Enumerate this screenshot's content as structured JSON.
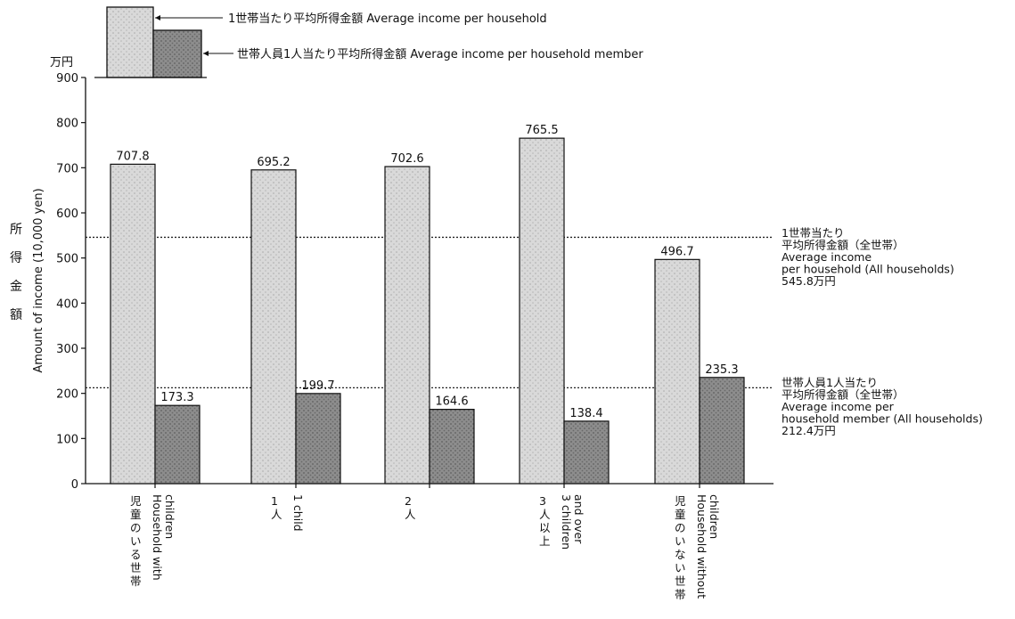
{
  "chart_data": {
    "type": "bar",
    "categories": [
      {
        "ja": "児童のいる世帯",
        "en": [
          "Household with",
          "children"
        ]
      },
      {
        "ja": "1人",
        "en": [
          "1 child"
        ]
      },
      {
        "ja": "2人",
        "en": []
      },
      {
        "ja": "3人以上",
        "en": [
          "3 children",
          "and over"
        ]
      },
      {
        "ja": "児童のいない世帯",
        "en": [
          "Household without",
          "children"
        ]
      }
    ],
    "series": [
      {
        "name": "1世帯当たり平均所得金額 Average income per household",
        "values": [
          707.8,
          695.2,
          702.6,
          765.5,
          496.7
        ],
        "color": "#cfcfcf"
      },
      {
        "name": "世帯人員1人当たり平均所得金額 Average income per household member",
        "values": [
          173.3,
          199.7,
          164.6,
          138.4,
          235.3
        ],
        "color": "#8a8a8a"
      }
    ],
    "value_labels": [
      [
        "707.8",
        "695.2",
        "702.6",
        "765.5",
        "496.7"
      ],
      [
        "173.3",
        "199.7",
        "164.6",
        "138.4",
        "235.3"
      ]
    ],
    "ylim": [
      0,
      900
    ],
    "yticks": [
      0,
      100,
      200,
      300,
      400,
      500,
      600,
      700,
      800,
      900
    ],
    "y_unit": "万円",
    "ylabel_ja": "所得金額",
    "ylabel_en": "Amount of income (10,000 yen)",
    "reference_lines": [
      {
        "value": 545.8,
        "label": [
          "1世帯当たり",
          "平均所得金額（全世帯）",
          "Average income",
          "per household (All households)",
          "545.8万円"
        ]
      },
      {
        "value": 212.4,
        "label": [
          "世帯人員1人当たり",
          "平均所得金額（全世帯）",
          "Average income per",
          "household member (All households)",
          "212.4万円"
        ]
      }
    ],
    "legend_placement": "top-left",
    "grid": false
  }
}
